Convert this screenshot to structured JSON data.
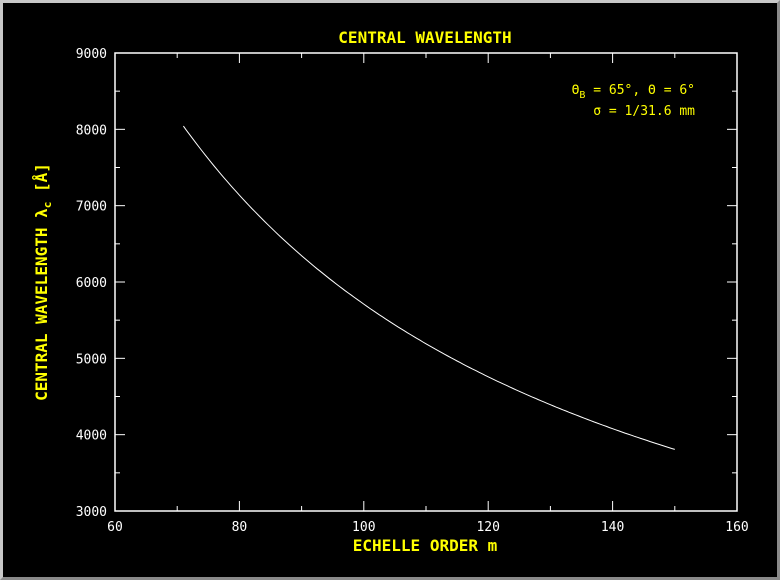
{
  "chart_data": {
    "type": "line",
    "title": "CENTRAL WAVELENGTH",
    "xlabel": "ECHELLE ORDER m",
    "ylabel": "CENTRAL WAVELENGTH λ",
    "ylabel_sub": "c",
    "ylabel_unit": "[Å]",
    "xlim": [
      60,
      160
    ],
    "ylim": [
      3000,
      9000
    ],
    "xticks": [
      "60",
      "80",
      "100",
      "120",
      "140",
      "160"
    ],
    "yticks": [
      "3000",
      "4000",
      "5000",
      "6000",
      "7000",
      "8000",
      "9000"
    ],
    "annotation_line1": "Θ",
    "annotation_line1_sub": "B",
    "annotation_line1_rest": " = 65°, Θ = 6°",
    "annotation_line2": "σ = 1/31.6 mm",
    "series": [
      {
        "name": "central wavelength",
        "formula": "571000/m",
        "x_range": [
          71,
          150
        ],
        "x": [
          71,
          75,
          80,
          85,
          90,
          95,
          100,
          105,
          110,
          115,
          120,
          125,
          130,
          135,
          140,
          145,
          150
        ],
        "y": [
          8042,
          7613,
          7138,
          6718,
          6344,
          6011,
          5710,
          5438,
          5191,
          4965,
          4758,
          4568,
          4392,
          4230,
          4079,
          3938,
          3807
        ]
      }
    ],
    "colors": {
      "text": "#ffff00",
      "axes": "#ffffff",
      "line": "#ffffff",
      "ticklabels": "#ffffff"
    }
  }
}
